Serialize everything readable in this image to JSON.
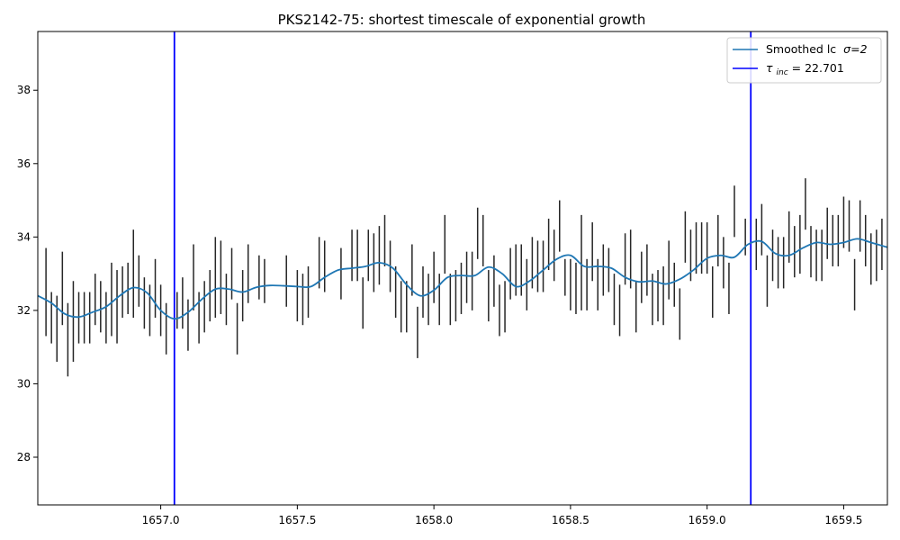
{
  "chart_data": {
    "type": "line",
    "title": "PKS2142-75: shortest timescale of exponential growth",
    "xlabel": "",
    "ylabel": "",
    "xlim": [
      1656.55,
      1659.66
    ],
    "ylim": [
      26.7,
      39.6
    ],
    "xticks": [
      1657.0,
      1657.5,
      1658.0,
      1658.5,
      1659.0,
      1659.5
    ],
    "xtick_labels": [
      "1657.0",
      "1657.5",
      "1658.0",
      "1658.5",
      "1659.0",
      "1659.5"
    ],
    "yticks": [
      28,
      30,
      32,
      34,
      36,
      38
    ],
    "ytick_labels": [
      "28",
      "30",
      "32",
      "34",
      "36",
      "38"
    ],
    "grid": false,
    "legend_position": "top-right",
    "legend": [
      {
        "label": "Smoothed lc",
        "math": "σ=2",
        "color": "#1f77b4",
        "kind": "line"
      },
      {
        "label_symbol": "τ",
        "label_sub": "inc",
        "label_rest": " = 22.701",
        "color": "#0000ff",
        "kind": "vline"
      }
    ],
    "series": [
      {
        "name": "Smoothed lc σ=2",
        "color": "#1f77b4",
        "points": [
          [
            1656.55,
            32.4
          ],
          [
            1656.6,
            32.2
          ],
          [
            1656.65,
            31.9
          ],
          [
            1656.7,
            31.82
          ],
          [
            1656.75,
            31.95
          ],
          [
            1656.8,
            32.1
          ],
          [
            1656.85,
            32.4
          ],
          [
            1656.9,
            32.62
          ],
          [
            1656.95,
            32.48
          ],
          [
            1657.0,
            32.0
          ],
          [
            1657.05,
            31.77
          ],
          [
            1657.1,
            31.95
          ],
          [
            1657.15,
            32.3
          ],
          [
            1657.2,
            32.58
          ],
          [
            1657.25,
            32.58
          ],
          [
            1657.3,
            32.5
          ],
          [
            1657.35,
            32.63
          ],
          [
            1657.4,
            32.68
          ],
          [
            1657.45,
            32.67
          ],
          [
            1657.5,
            32.65
          ],
          [
            1657.55,
            32.65
          ],
          [
            1657.6,
            32.9
          ],
          [
            1657.65,
            33.1
          ],
          [
            1657.7,
            33.15
          ],
          [
            1657.75,
            33.2
          ],
          [
            1657.8,
            33.3
          ],
          [
            1657.85,
            33.15
          ],
          [
            1657.9,
            32.7
          ],
          [
            1657.95,
            32.4
          ],
          [
            1658.0,
            32.55
          ],
          [
            1658.05,
            32.9
          ],
          [
            1658.1,
            32.95
          ],
          [
            1658.15,
            32.95
          ],
          [
            1658.2,
            33.18
          ],
          [
            1658.25,
            33.0
          ],
          [
            1658.3,
            32.65
          ],
          [
            1658.35,
            32.8
          ],
          [
            1658.4,
            33.1
          ],
          [
            1658.45,
            33.4
          ],
          [
            1658.5,
            33.5
          ],
          [
            1658.55,
            33.2
          ],
          [
            1658.6,
            33.2
          ],
          [
            1658.65,
            33.15
          ],
          [
            1658.7,
            32.9
          ],
          [
            1658.75,
            32.78
          ],
          [
            1658.8,
            32.8
          ],
          [
            1658.85,
            32.72
          ],
          [
            1658.9,
            32.85
          ],
          [
            1658.95,
            33.1
          ],
          [
            1659.0,
            33.42
          ],
          [
            1659.05,
            33.5
          ],
          [
            1659.1,
            33.45
          ],
          [
            1659.15,
            33.8
          ],
          [
            1659.2,
            33.88
          ],
          [
            1659.25,
            33.55
          ],
          [
            1659.3,
            33.5
          ],
          [
            1659.35,
            33.7
          ],
          [
            1659.4,
            33.85
          ],
          [
            1659.45,
            33.8
          ],
          [
            1659.5,
            33.85
          ],
          [
            1659.55,
            33.95
          ],
          [
            1659.6,
            33.85
          ],
          [
            1659.66,
            33.72
          ]
        ]
      }
    ],
    "vlines": [
      {
        "x": 1657.05,
        "color": "#0000ff"
      },
      {
        "x": 1659.16,
        "color": "#0000ff"
      }
    ],
    "errorbar_color": "#262626",
    "errorbars": [
      [
        1656.58,
        32.5,
        1.2
      ],
      [
        1656.6,
        31.8,
        0.7
      ],
      [
        1656.62,
        31.5,
        0.9
      ],
      [
        1656.64,
        32.6,
        1.0
      ],
      [
        1656.66,
        31.2,
        1.0
      ],
      [
        1656.68,
        31.7,
        1.1
      ],
      [
        1656.7,
        31.8,
        0.7
      ],
      [
        1656.72,
        31.8,
        0.7
      ],
      [
        1656.74,
        31.8,
        0.7
      ],
      [
        1656.76,
        32.3,
        0.7
      ],
      [
        1656.78,
        32.1,
        0.7
      ],
      [
        1656.8,
        31.8,
        0.7
      ],
      [
        1656.82,
        32.3,
        1.0
      ],
      [
        1656.84,
        32.1,
        1.0
      ],
      [
        1656.86,
        32.5,
        0.7
      ],
      [
        1656.88,
        32.6,
        0.7
      ],
      [
        1656.9,
        33.0,
        1.2
      ],
      [
        1656.92,
        32.8,
        0.7
      ],
      [
        1656.94,
        32.2,
        0.7
      ],
      [
        1656.96,
        32.0,
        0.7
      ],
      [
        1656.98,
        32.6,
        0.8
      ],
      [
        1657.0,
        32.0,
        0.7
      ],
      [
        1657.02,
        31.5,
        0.7
      ],
      [
        1657.06,
        32.0,
        0.5
      ],
      [
        1657.08,
        32.2,
        0.7
      ],
      [
        1657.1,
        31.6,
        0.7
      ],
      [
        1657.12,
        32.9,
        0.9
      ],
      [
        1657.14,
        31.8,
        0.7
      ],
      [
        1657.16,
        32.1,
        0.7
      ],
      [
        1657.18,
        32.4,
        0.7
      ],
      [
        1657.2,
        32.9,
        1.1
      ],
      [
        1657.22,
        32.9,
        1.0
      ],
      [
        1657.24,
        32.3,
        0.7
      ],
      [
        1657.26,
        33.0,
        0.7
      ],
      [
        1657.28,
        31.5,
        0.7
      ],
      [
        1657.3,
        32.4,
        0.7
      ],
      [
        1657.32,
        33.0,
        0.8
      ],
      [
        1657.36,
        32.9,
        0.6
      ],
      [
        1657.38,
        32.8,
        0.6
      ],
      [
        1657.46,
        32.8,
        0.7
      ],
      [
        1657.5,
        32.4,
        0.7
      ],
      [
        1657.52,
        32.3,
        0.7
      ],
      [
        1657.54,
        32.5,
        0.7
      ],
      [
        1657.58,
        33.3,
        0.7
      ],
      [
        1657.6,
        33.2,
        0.7
      ],
      [
        1657.66,
        33.0,
        0.7
      ],
      [
        1657.7,
        33.5,
        0.7
      ],
      [
        1657.72,
        33.5,
        0.7
      ],
      [
        1657.74,
        32.2,
        0.7
      ],
      [
        1657.76,
        33.5,
        0.7
      ],
      [
        1657.78,
        33.3,
        0.8
      ],
      [
        1657.8,
        33.5,
        0.8
      ],
      [
        1657.82,
        33.9,
        0.7
      ],
      [
        1657.84,
        33.2,
        0.7
      ],
      [
        1657.86,
        32.5,
        0.7
      ],
      [
        1657.88,
        32.1,
        0.7
      ],
      [
        1657.9,
        32.1,
        0.7
      ],
      [
        1657.92,
        33.1,
        0.7
      ],
      [
        1657.94,
        31.4,
        0.7
      ],
      [
        1657.96,
        32.5,
        0.7
      ],
      [
        1657.98,
        32.3,
        0.7
      ],
      [
        1658.0,
        32.9,
        0.7
      ],
      [
        1658.02,
        32.3,
        0.7
      ],
      [
        1658.04,
        33.8,
        0.8
      ],
      [
        1658.06,
        32.3,
        0.7
      ],
      [
        1658.08,
        32.4,
        0.7
      ],
      [
        1658.1,
        32.6,
        0.7
      ],
      [
        1658.12,
        32.9,
        0.7
      ],
      [
        1658.14,
        32.8,
        0.8
      ],
      [
        1658.16,
        34.1,
        0.7
      ],
      [
        1658.18,
        33.9,
        0.7
      ],
      [
        1658.2,
        32.4,
        0.7
      ],
      [
        1658.22,
        32.8,
        0.7
      ],
      [
        1658.24,
        32.0,
        0.7
      ],
      [
        1658.26,
        32.1,
        0.7
      ],
      [
        1658.28,
        33.0,
        0.7
      ],
      [
        1658.3,
        33.1,
        0.7
      ],
      [
        1658.32,
        33.1,
        0.7
      ],
      [
        1658.34,
        32.7,
        0.7
      ],
      [
        1658.36,
        33.3,
        0.7
      ],
      [
        1658.38,
        33.2,
        0.7
      ],
      [
        1658.4,
        33.2,
        0.7
      ],
      [
        1658.42,
        33.8,
        0.7
      ],
      [
        1658.44,
        33.5,
        0.7
      ],
      [
        1658.46,
        34.3,
        0.7
      ],
      [
        1658.48,
        32.9,
        0.5
      ],
      [
        1658.5,
        32.7,
        0.7
      ],
      [
        1658.52,
        32.6,
        0.7
      ],
      [
        1658.54,
        33.3,
        1.3
      ],
      [
        1658.56,
        32.7,
        0.7
      ],
      [
        1658.58,
        33.6,
        0.8
      ],
      [
        1658.6,
        32.7,
        0.7
      ],
      [
        1658.62,
        33.1,
        0.7
      ],
      [
        1658.64,
        33.1,
        0.6
      ],
      [
        1658.66,
        32.3,
        0.7
      ],
      [
        1658.68,
        32.0,
        0.7
      ],
      [
        1658.7,
        33.4,
        0.7
      ],
      [
        1658.72,
        33.4,
        0.8
      ],
      [
        1658.74,
        32.1,
        0.7
      ],
      [
        1658.76,
        32.9,
        0.7
      ],
      [
        1658.78,
        33.1,
        0.7
      ],
      [
        1658.8,
        32.3,
        0.7
      ],
      [
        1658.82,
        32.4,
        0.7
      ],
      [
        1658.84,
        32.4,
        0.8
      ],
      [
        1658.86,
        33.1,
        0.8
      ],
      [
        1658.88,
        32.7,
        0.6
      ],
      [
        1658.9,
        31.9,
        0.7
      ],
      [
        1658.92,
        34.0,
        0.7
      ],
      [
        1658.94,
        33.5,
        0.7
      ],
      [
        1658.96,
        33.7,
        0.7
      ],
      [
        1658.98,
        33.7,
        0.7
      ],
      [
        1659.0,
        33.7,
        0.7
      ],
      [
        1659.02,
        32.5,
        0.7
      ],
      [
        1659.04,
        33.9,
        0.7
      ],
      [
        1659.06,
        33.3,
        0.7
      ],
      [
        1659.08,
        32.6,
        0.7
      ],
      [
        1659.1,
        34.7,
        0.7
      ],
      [
        1659.14,
        34.0,
        0.5
      ],
      [
        1659.16,
        33.6,
        0.6
      ],
      [
        1659.18,
        33.8,
        0.7
      ],
      [
        1659.2,
        34.2,
        0.7
      ],
      [
        1659.22,
        32.8,
        0.7
      ],
      [
        1659.24,
        33.5,
        0.7
      ],
      [
        1659.26,
        33.3,
        0.7
      ],
      [
        1659.28,
        33.3,
        0.7
      ],
      [
        1659.3,
        34.0,
        0.7
      ],
      [
        1659.32,
        33.6,
        0.7
      ],
      [
        1659.34,
        33.8,
        0.8
      ],
      [
        1659.36,
        34.9,
        0.7
      ],
      [
        1659.38,
        33.6,
        0.7
      ],
      [
        1659.4,
        33.5,
        0.7
      ],
      [
        1659.42,
        33.5,
        0.7
      ],
      [
        1659.44,
        34.1,
        0.7
      ],
      [
        1659.46,
        33.9,
        0.7
      ],
      [
        1659.48,
        33.9,
        0.7
      ],
      [
        1659.5,
        34.4,
        0.7
      ],
      [
        1659.52,
        34.3,
        0.7
      ],
      [
        1659.54,
        32.7,
        0.7
      ],
      [
        1659.56,
        34.3,
        0.7
      ],
      [
        1659.58,
        33.9,
        0.7
      ],
      [
        1659.6,
        33.4,
        0.7
      ],
      [
        1659.62,
        33.5,
        0.7
      ],
      [
        1659.64,
        33.8,
        0.7
      ]
    ]
  }
}
